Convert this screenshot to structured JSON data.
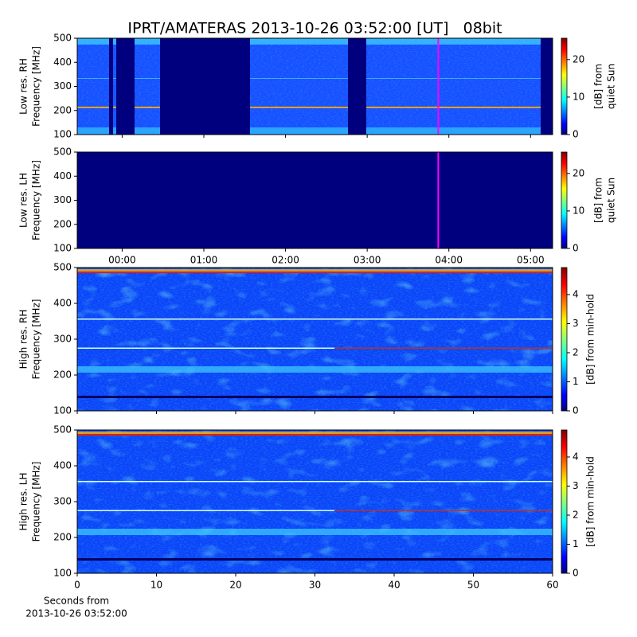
{
  "chart_data": [
    {
      "type": "heatmap",
      "title": "IPRT/AMATERAS 2013-10-26 03:52:00 [UT]   08bit",
      "ylabel": [
        "Low res. RH",
        "Frequency [MHz]"
      ],
      "xlim": [
        -0.55,
        5.27
      ],
      "xticks": [
        {
          "value": 0,
          "label": "00:00"
        },
        {
          "value": 1,
          "label": "01:00"
        },
        {
          "value": 2,
          "label": "02:00"
        },
        {
          "value": 3,
          "label": "03:00"
        },
        {
          "value": 4,
          "label": "04:00"
        },
        {
          "value": 5,
          "label": "05:00"
        }
      ],
      "show_xtick_labels": false,
      "ylim": [
        100,
        500
      ],
      "yticks": [
        100,
        200,
        300,
        400,
        500
      ],
      "colorbar": {
        "label": [
          "[dB] from",
          "quiet Sun"
        ],
        "lim": [
          0,
          25.7
        ],
        "ticks": [
          0,
          10,
          20
        ]
      },
      "marker": {
        "x": 3.87,
        "color": "#ff00ff"
      }
    },
    {
      "type": "heatmap",
      "ylabel": [
        "Low res. LH",
        "Frequency [MHz]"
      ],
      "xlim": [
        -0.55,
        5.27
      ],
      "xticks": [
        {
          "value": 0,
          "label": "00:00"
        },
        {
          "value": 1,
          "label": "01:00"
        },
        {
          "value": 2,
          "label": "02:00"
        },
        {
          "value": 3,
          "label": "03:00"
        },
        {
          "value": 4,
          "label": "04:00"
        },
        {
          "value": 5,
          "label": "05:00"
        }
      ],
      "show_xtick_labels": true,
      "ylim": [
        100,
        500
      ],
      "yticks": [
        100,
        200,
        300,
        400,
        500
      ],
      "colorbar": {
        "label": [
          "[dB] from",
          "quiet Sun"
        ],
        "lim": [
          0,
          25.7
        ],
        "ticks": [
          0,
          10,
          20
        ]
      },
      "marker": {
        "x": 3.87,
        "color": "#ff00ff"
      }
    },
    {
      "type": "heatmap",
      "ylabel": [
        "High res. RH",
        "Frequency [MHz]"
      ],
      "xlim": [
        0,
        60
      ],
      "xticks": [
        0,
        10,
        20,
        30,
        40,
        50,
        60
      ],
      "show_xtick_labels": false,
      "ylim": [
        100,
        500
      ],
      "yticks": [
        100,
        200,
        300,
        400,
        500
      ],
      "colorbar": {
        "label": [
          "[dB] from min-hold"
        ],
        "lim": [
          0,
          4.93
        ],
        "ticks": [
          0,
          1,
          2,
          3,
          4
        ]
      }
    },
    {
      "type": "heatmap",
      "ylabel": [
        "High res. LH",
        "Frequency [MHz]"
      ],
      "xlim": [
        0,
        60
      ],
      "xticks": [
        0,
        10,
        20,
        30,
        40,
        50,
        60
      ],
      "show_xtick_labels": true,
      "xlabel": [
        "Seconds from",
        "2013-10-26 03:52:00"
      ],
      "ylim": [
        100,
        500
      ],
      "yticks": [
        100,
        200,
        300,
        400,
        500
      ],
      "colorbar": {
        "label": [
          "[dB] from min-hold"
        ],
        "lim": [
          0,
          4.93
        ],
        "ticks": [
          0,
          1,
          2,
          3,
          4
        ]
      }
    }
  ]
}
